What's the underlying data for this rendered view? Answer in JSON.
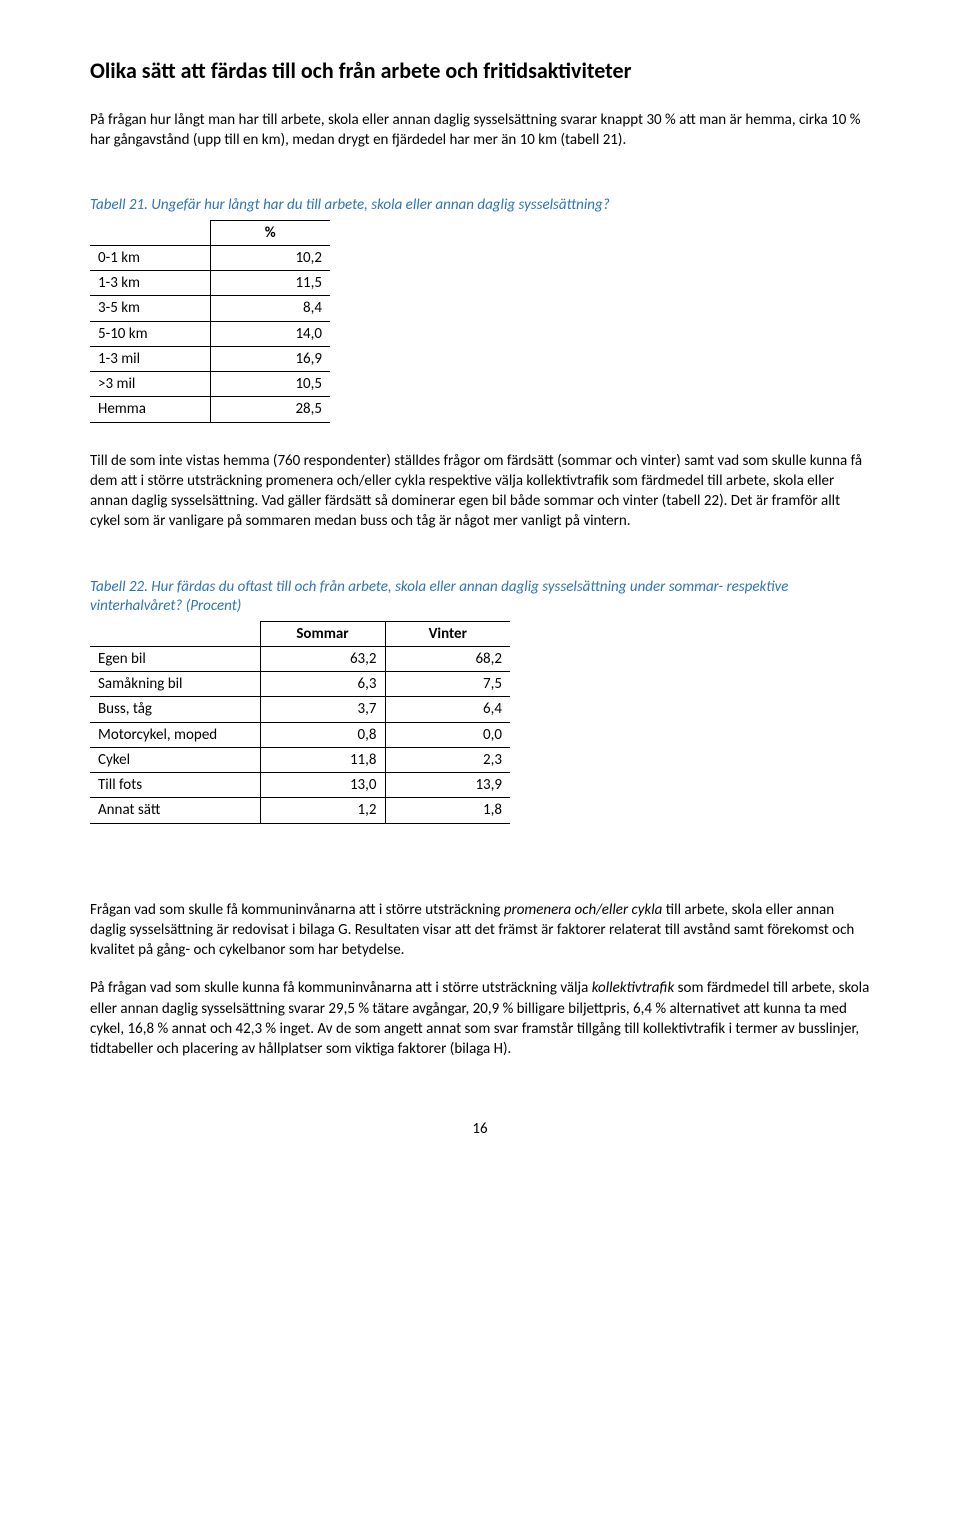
{
  "heading": "Olika sätt att färdas till och från arbete och fritidsaktiviteter",
  "intro": "På frågan hur långt man har till arbete, skola eller annan daglig sysselsättning svarar knappt 30 % att man är hemma, cirka 10 % har gångavstånd (upp till en km), medan drygt en fjärdedel har mer än 10 km (tabell 21).",
  "table21": {
    "caption": "Tabell 21. Ungefär hur långt har du till arbete, skola eller annan daglig sysselsättning?",
    "pct_label": "%",
    "rows": [
      {
        "label": "0-1 km",
        "value": "10,2"
      },
      {
        "label": "1-3 km",
        "value": "11,5"
      },
      {
        "label": "3-5 km",
        "value": "8,4"
      },
      {
        "label": "5-10 km",
        "value": "14,0"
      },
      {
        "label": "1-3 mil",
        "value": "16,9"
      },
      {
        "label": ">3 mil",
        "value": "10,5"
      },
      {
        "label": "Hemma",
        "value": "28,5"
      }
    ]
  },
  "para2": "Till de som inte vistas hemma (760 respondenter) ställdes frågor om färdsätt (sommar och vinter) samt vad som skulle kunna få dem att i större utsträckning promenera och/eller cykla respektive välja kollektivtrafik som färdmedel till arbete, skola eller annan daglig sysselsättning. Vad gäller färdsätt så dominerar egen bil både sommar och vinter (tabell 22). Det är framför allt cykel som är vanligare på sommaren medan buss och tåg är något mer vanligt på vintern.",
  "table22": {
    "caption": "Tabell 22. Hur färdas du oftast till och från arbete, skola eller annan daglig sysselsättning under sommar- respektive vinterhalvåret? (Procent)",
    "col1": "Sommar",
    "col2": "Vinter",
    "rows": [
      {
        "label": "Egen bil",
        "s": "63,2",
        "v": "68,2"
      },
      {
        "label": "Samåkning bil",
        "s": "6,3",
        "v": "7,5"
      },
      {
        "label": "Buss, tåg",
        "s": "3,7",
        "v": "6,4"
      },
      {
        "label": "Motorcykel, moped",
        "s": "0,8",
        "v": "0,0"
      },
      {
        "label": "Cykel",
        "s": "11,8",
        "v": "2,3"
      },
      {
        "label": "Till fots",
        "s": "13,0",
        "v": "13,9"
      },
      {
        "label": "Annat sätt",
        "s": "1,2",
        "v": "1,8"
      }
    ]
  },
  "para3_html": "Frågan vad som skulle få kommuninvånarna att i större utsträckning <i>promenera och/eller cykla</i> till arbete, skola eller annan daglig sysselsättning är redovisat i bilaga G. Resultaten visar att det främst är faktorer relaterat till avstånd samt förekomst och kvalitet på gång- och cykelbanor som har betydelse.",
  "para4_html": "På frågan vad som skulle kunna få kommuninvånarna att i större utsträckning välja <i>kollektivtrafik</i> som färdmedel till arbete, skola eller annan daglig sysselsättning svarar 29,5 % tätare avgångar, 20,9 % billigare biljettpris, 6,4 % alternativet att kunna ta med cykel, 16,8 % annat och 42,3 % inget. Av de som angett annat som svar framstår tillgång till kollektivtrafik i termer av busslinjer, tidtabeller och placering av hållplatser som viktiga faktorer (bilaga H).",
  "page_number": "16"
}
